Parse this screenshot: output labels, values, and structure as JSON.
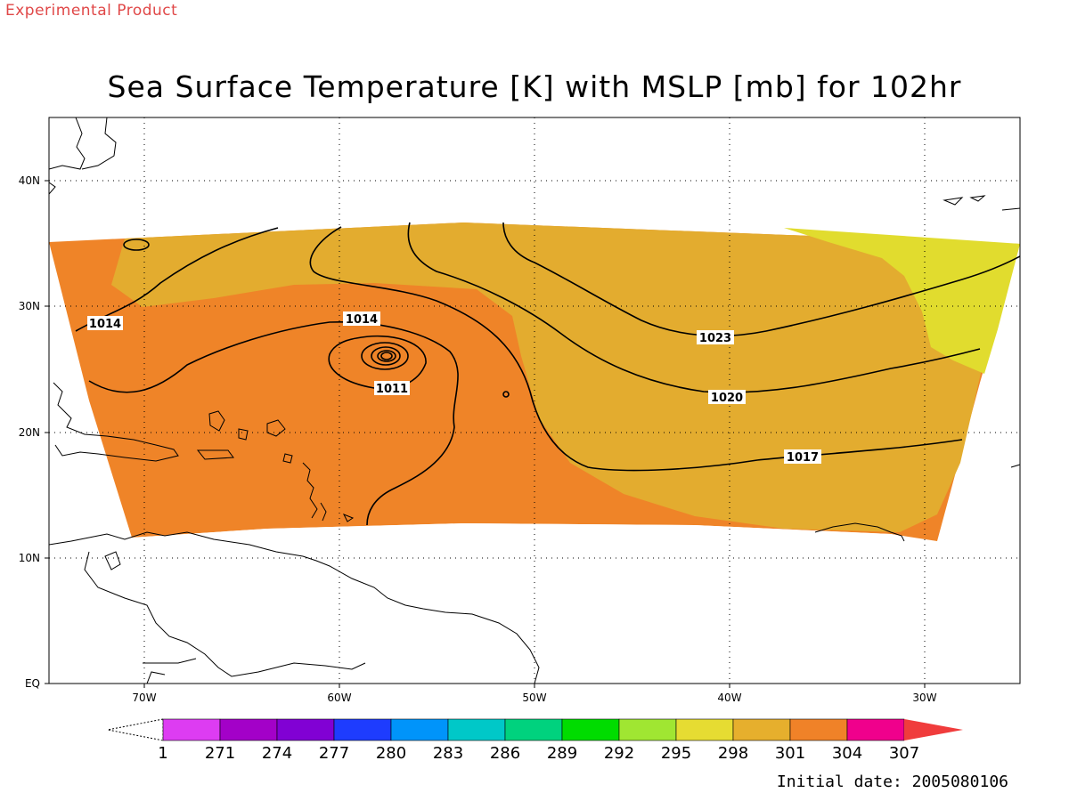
{
  "header": {
    "banner": "Experimental Product",
    "title": "Sea Surface Temperature [K] with MSLP [mb] for 102hr"
  },
  "footer": {
    "initial_date": "Initial date: 2005080106"
  },
  "map": {
    "projection": "latitude-longitude",
    "lon_range": [
      -75,
      -25
    ],
    "lat_range": [
      0,
      45
    ],
    "grid": "dotted",
    "y_ticks": [
      "EQ",
      "10N",
      "20N",
      "30N",
      "40N"
    ],
    "x_ticks": [
      "70W",
      "60W",
      "50W",
      "40W",
      "30W"
    ],
    "shaded_field": "Sea Surface Temperature [K]",
    "contour_field": "MSLP [mb]",
    "contour_labels": [
      "1014",
      "1014",
      "1011",
      "1023",
      "1020",
      "1017"
    ],
    "colors": {
      "sst_301_304": "#ef8428",
      "sst_298_301": "#e3ac2f",
      "sst_295_298": "#e1dc2e",
      "contour": "#000000",
      "coastline": "#000000"
    }
  },
  "colorbar": {
    "labels": [
      "1",
      "271",
      "274",
      "277",
      "280",
      "283",
      "286",
      "289",
      "292",
      "295",
      "298",
      "301",
      "304",
      "307"
    ],
    "colors": [
      "#dd3cf2",
      "#a301c8",
      "#8101d4",
      "#1e3cfe",
      "#0094fa",
      "#00c8c8",
      "#00d27e",
      "#00dc00",
      "#a0e632",
      "#e6dc32",
      "#e6af2d",
      "#f08228",
      "#f0008c",
      "#f03c3c"
    ]
  }
}
